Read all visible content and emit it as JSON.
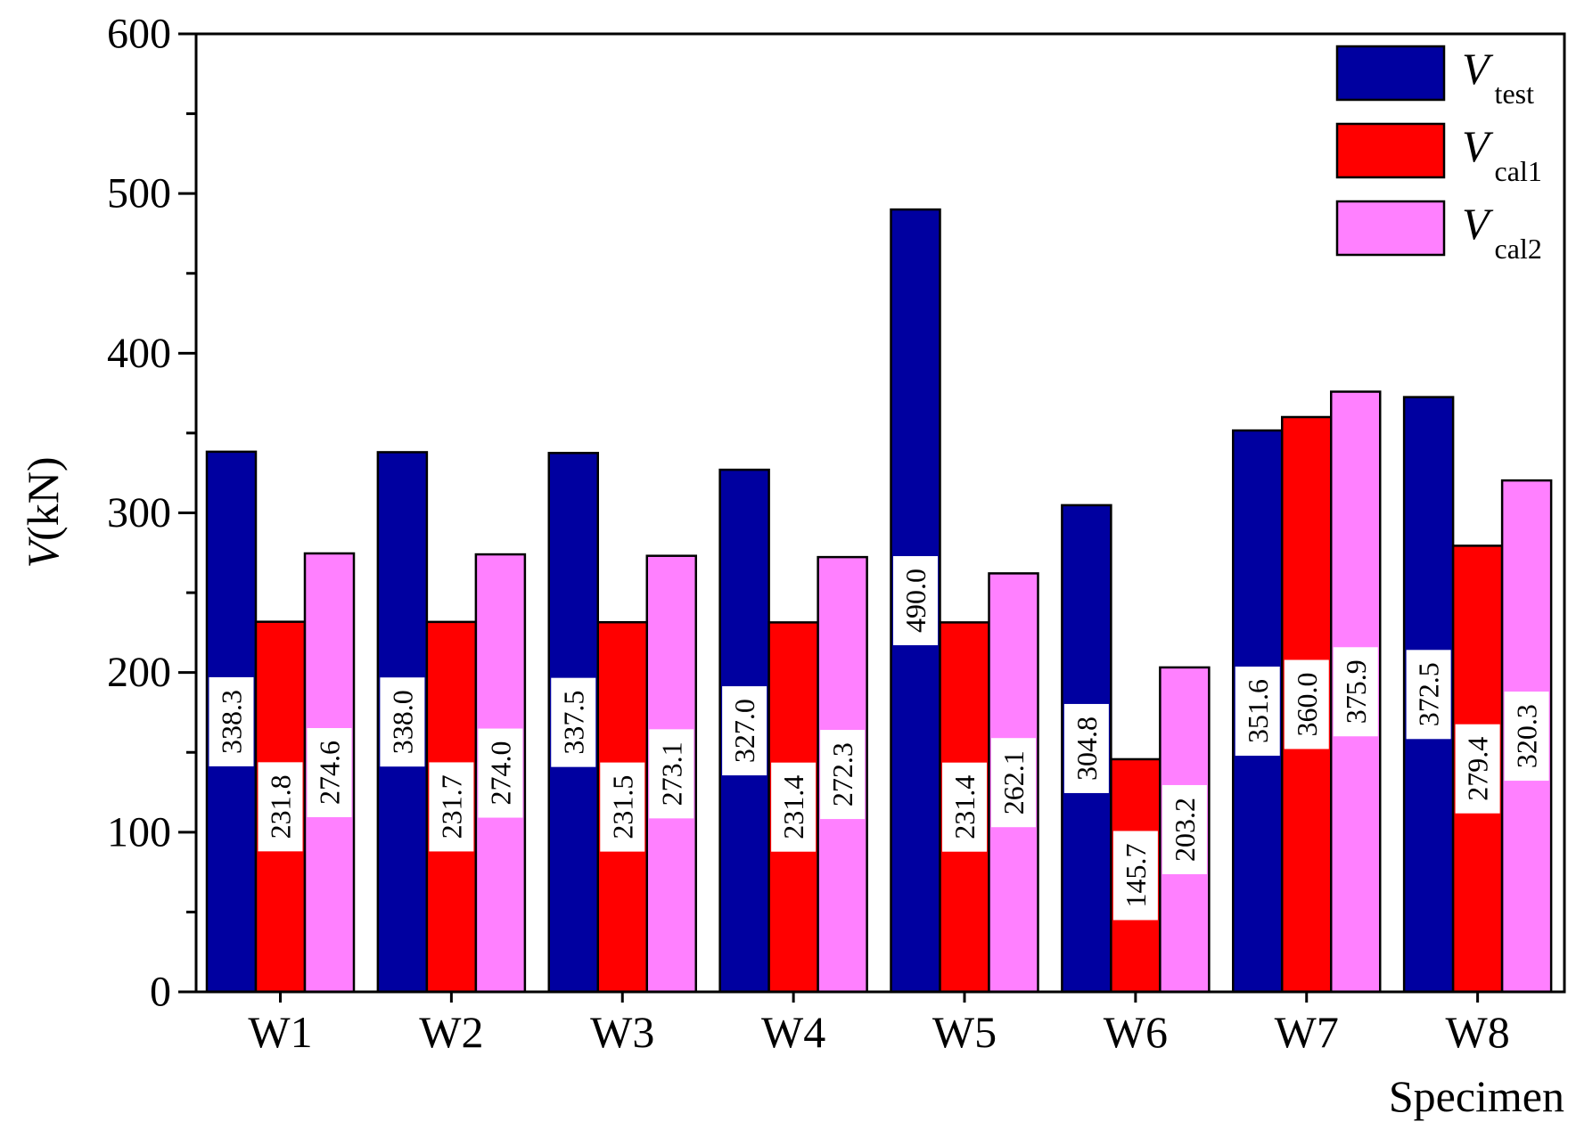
{
  "chart_data": {
    "type": "bar",
    "title": "",
    "xlabel": "Specimen",
    "ylabel_italic": "V",
    "ylabel_unit": "(kN)",
    "ylim": [
      0,
      600
    ],
    "yticks": [
      0,
      100,
      200,
      300,
      400,
      500,
      600
    ],
    "categories": [
      "W1",
      "W2",
      "W3",
      "W4",
      "W5",
      "W6",
      "W7",
      "W8"
    ],
    "series": [
      {
        "name": "V",
        "subscript": "test",
        "color": "#0000A0",
        "values": [
          338.3,
          338.0,
          337.5,
          327.0,
          490.0,
          304.8,
          351.6,
          372.5
        ],
        "labels": [
          "338.3",
          "338.0",
          "337.5",
          "327.0",
          "490.0",
          "304.8",
          "351.6",
          "372.5"
        ]
      },
      {
        "name": "V",
        "subscript": "cal1",
        "color": "#FF0000",
        "values": [
          231.8,
          231.7,
          231.5,
          231.4,
          231.4,
          145.7,
          360.0,
          279.4
        ],
        "labels": [
          "231.8",
          "231.7",
          "231.5",
          "231.4",
          "231.4",
          "145.7",
          "360.0",
          "279.4"
        ]
      },
      {
        "name": "V",
        "subscript": "cal2",
        "color": "#FF80FF",
        "values": [
          274.6,
          274.0,
          273.1,
          272.3,
          262.1,
          203.2,
          375.9,
          320.3
        ],
        "labels": [
          "274.6",
          "274.0",
          "273.1",
          "272.3",
          "262.1",
          "203.2",
          "375.9",
          "320.3"
        ]
      }
    ],
    "legend_position": "top-right",
    "grid": false
  }
}
